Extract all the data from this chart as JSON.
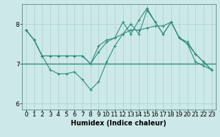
{
  "x": [
    0,
    1,
    2,
    3,
    4,
    5,
    6,
    7,
    8,
    9,
    10,
    11,
    12,
    13,
    14,
    15,
    16,
    17,
    18,
    19,
    20,
    21,
    22,
    23
  ],
  "line_top": [
    7.85,
    7.6,
    7.2,
    7.2,
    7.2,
    7.2,
    7.2,
    7.2,
    7.0,
    7.3,
    7.55,
    7.65,
    7.75,
    7.85,
    7.85,
    7.9,
    7.95,
    7.95,
    8.05,
    7.65,
    7.55,
    7.25,
    7.05,
    6.85
  ],
  "line_mid": [
    7.85,
    7.6,
    7.2,
    7.2,
    7.2,
    7.2,
    7.2,
    7.2,
    7.0,
    7.45,
    7.6,
    7.65,
    8.05,
    7.75,
    8.1,
    8.4,
    8.05,
    7.75,
    8.05,
    7.65,
    7.5,
    7.25,
    7.05,
    6.85
  ],
  "line_low": [
    7.85,
    7.6,
    7.2,
    6.85,
    6.75,
    6.75,
    6.8,
    6.6,
    6.35,
    6.55,
    7.05,
    7.45,
    7.75,
    8.0,
    7.75,
    8.35,
    8.05,
    7.75,
    8.05,
    7.65,
    7.5,
    7.05,
    6.95,
    6.85
  ],
  "hline_y": 7.0,
  "line_color": "#2a8b7a",
  "bg_color": "#cce8e8",
  "plot_bg": "#cce8e8",
  "grid_color": "#aacece",
  "ylim": [
    5.85,
    8.5
  ],
  "yticks": [
    6,
    7,
    8
  ],
  "xlim": [
    -0.5,
    23.5
  ],
  "xlabel": "Humidex (Indice chaleur)",
  "xlabel_fontsize": 7,
  "tick_fontsize": 6.5
}
